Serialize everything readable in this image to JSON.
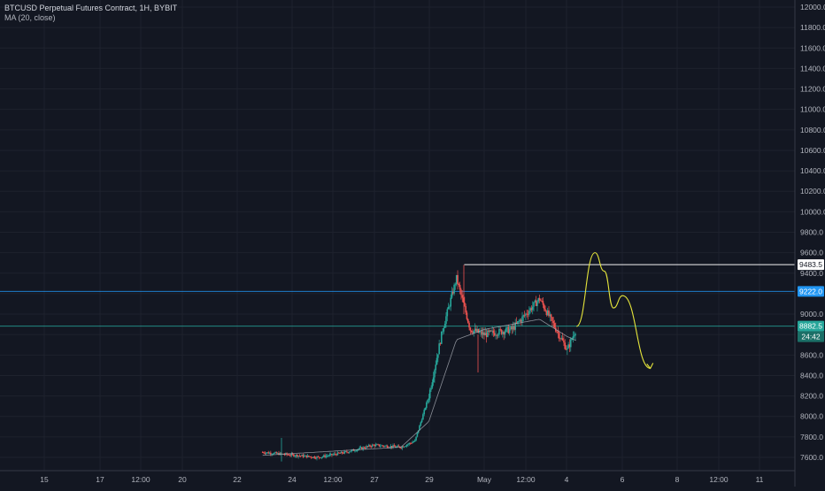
{
  "header": {
    "symbol_line": "BTCUSD Perpetual Futures Contract, 1H, BYBIT",
    "indicator_line": "MA (20, close)"
  },
  "colors": {
    "background": "#131722",
    "up_candle": "#26a69a",
    "down_candle": "#ef5350",
    "ma_line": "#b2b5be",
    "drawing_yellow": "#e5e53b",
    "level_white": "#ffffff",
    "level_blue": "#2196f3",
    "level_teal": "#26a69a",
    "axis_text": "#b2b5be"
  },
  "chart_data": {
    "type": "candlestick",
    "ylim": [
      7500,
      12060
    ],
    "y_ticks": [
      "12000.0",
      "11800.0",
      "11600.0",
      "11400.0",
      "11200.0",
      "11000.0",
      "10800.0",
      "10600.0",
      "10400.0",
      "10200.0",
      "10000.0",
      "9800.0",
      "9600.0",
      "9400.0",
      "9200.0",
      "9000.0",
      "8800.0",
      "8600.0",
      "8400.0",
      "8200.0",
      "8000.0",
      "7800.0",
      "7600.0"
    ],
    "x_ticks": [
      "15",
      "17",
      "12:00",
      "20",
      "22",
      "24",
      "12:00",
      "27",
      "29",
      "May",
      "12:00",
      "4",
      "6",
      "8",
      "12:00",
      "11"
    ],
    "price_tags": [
      {
        "label": "9483.5",
        "value": 9483.5,
        "style": "white"
      },
      {
        "label": "9222.0",
        "value": 9222.0,
        "style": "blue"
      },
      {
        "label": "8882.5",
        "value": 8882.5,
        "style": "teal"
      },
      {
        "label": "24:42",
        "value": 8770,
        "style": "teal-dark"
      }
    ],
    "horizontal_lines": [
      {
        "value": 9483.5,
        "color": "#ffffff",
        "from_date": "Apr 29"
      },
      {
        "value": 9222.0,
        "color": "#2196f3",
        "from_date": "start"
      },
      {
        "value": 8882.5,
        "color": "#26a69a",
        "from_date": "start"
      }
    ],
    "candle_path": [
      {
        "at": "Apr 23",
        "price": 7650
      },
      {
        "at": "Apr 25",
        "price": 7600
      },
      {
        "at": "Apr 26",
        "price": 7650
      },
      {
        "at": "Apr 27",
        "price": 7720
      },
      {
        "at": "Apr 28",
        "price": 7700
      },
      {
        "at": "Apr 28 12:00",
        "price": 7760
      },
      {
        "at": "Apr 29",
        "price": 8200
      },
      {
        "at": "Apr 29 12:00",
        "price": 8850
      },
      {
        "at": "Apr 30",
        "price": 9350
      },
      {
        "at": "Apr 30 12:00",
        "price": 8850
      },
      {
        "at": "May 1",
        "price": 8800
      },
      {
        "at": "May 2",
        "price": 8850
      },
      {
        "at": "May 3",
        "price": 9150
      },
      {
        "at": "May 3 12:00",
        "price": 8900
      },
      {
        "at": "May 4",
        "price": 8650
      },
      {
        "at": "May 4 08:00",
        "price": 8870
      }
    ],
    "ma_path": [
      {
        "at": "Apr 23",
        "price": 7620
      },
      {
        "at": "Apr 28",
        "price": 7700
      },
      {
        "at": "Apr 29",
        "price": 7950
      },
      {
        "at": "Apr 30",
        "price": 8750
      },
      {
        "at": "May 1",
        "price": 8850
      },
      {
        "at": "May 3",
        "price": 8950
      },
      {
        "at": "May 4",
        "price": 8780
      },
      {
        "at": "May 4 08:00",
        "price": 8740
      }
    ],
    "projection_path": [
      {
        "at": "May 4 08:00",
        "price": 8880
      },
      {
        "at": "May 5",
        "price": 9600
      },
      {
        "at": "May 5 08:00",
        "price": 9420
      },
      {
        "at": "May 5 16:00",
        "price": 9060
      },
      {
        "at": "May 6",
        "price": 9180
      },
      {
        "at": "May 7",
        "price": 8470
      }
    ]
  }
}
